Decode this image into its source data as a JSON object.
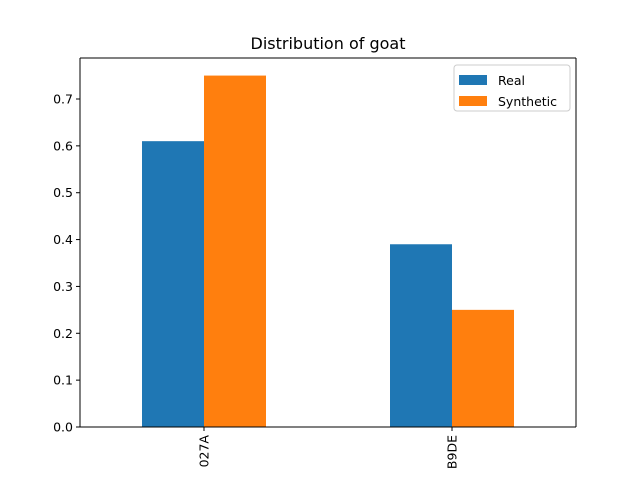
{
  "chart_data": {
    "type": "bar",
    "title": "Distribution of goat",
    "xlabel": "",
    "ylabel": "",
    "categories": [
      "027A",
      "B9DE"
    ],
    "series": [
      {
        "name": "Real",
        "values": [
          0.61,
          0.39
        ],
        "color": "#1f77b4"
      },
      {
        "name": "Synthetic",
        "values": [
          0.75,
          0.25
        ],
        "color": "#ff7f0e"
      }
    ],
    "ylim": [
      0,
      0.7875
    ],
    "yticks": [
      "0.0",
      "0.1",
      "0.2",
      "0.3",
      "0.4",
      "0.5",
      "0.6",
      "0.7"
    ],
    "grid": false,
    "legend_position": "top-right",
    "xtick_rotation": "vertical"
  }
}
